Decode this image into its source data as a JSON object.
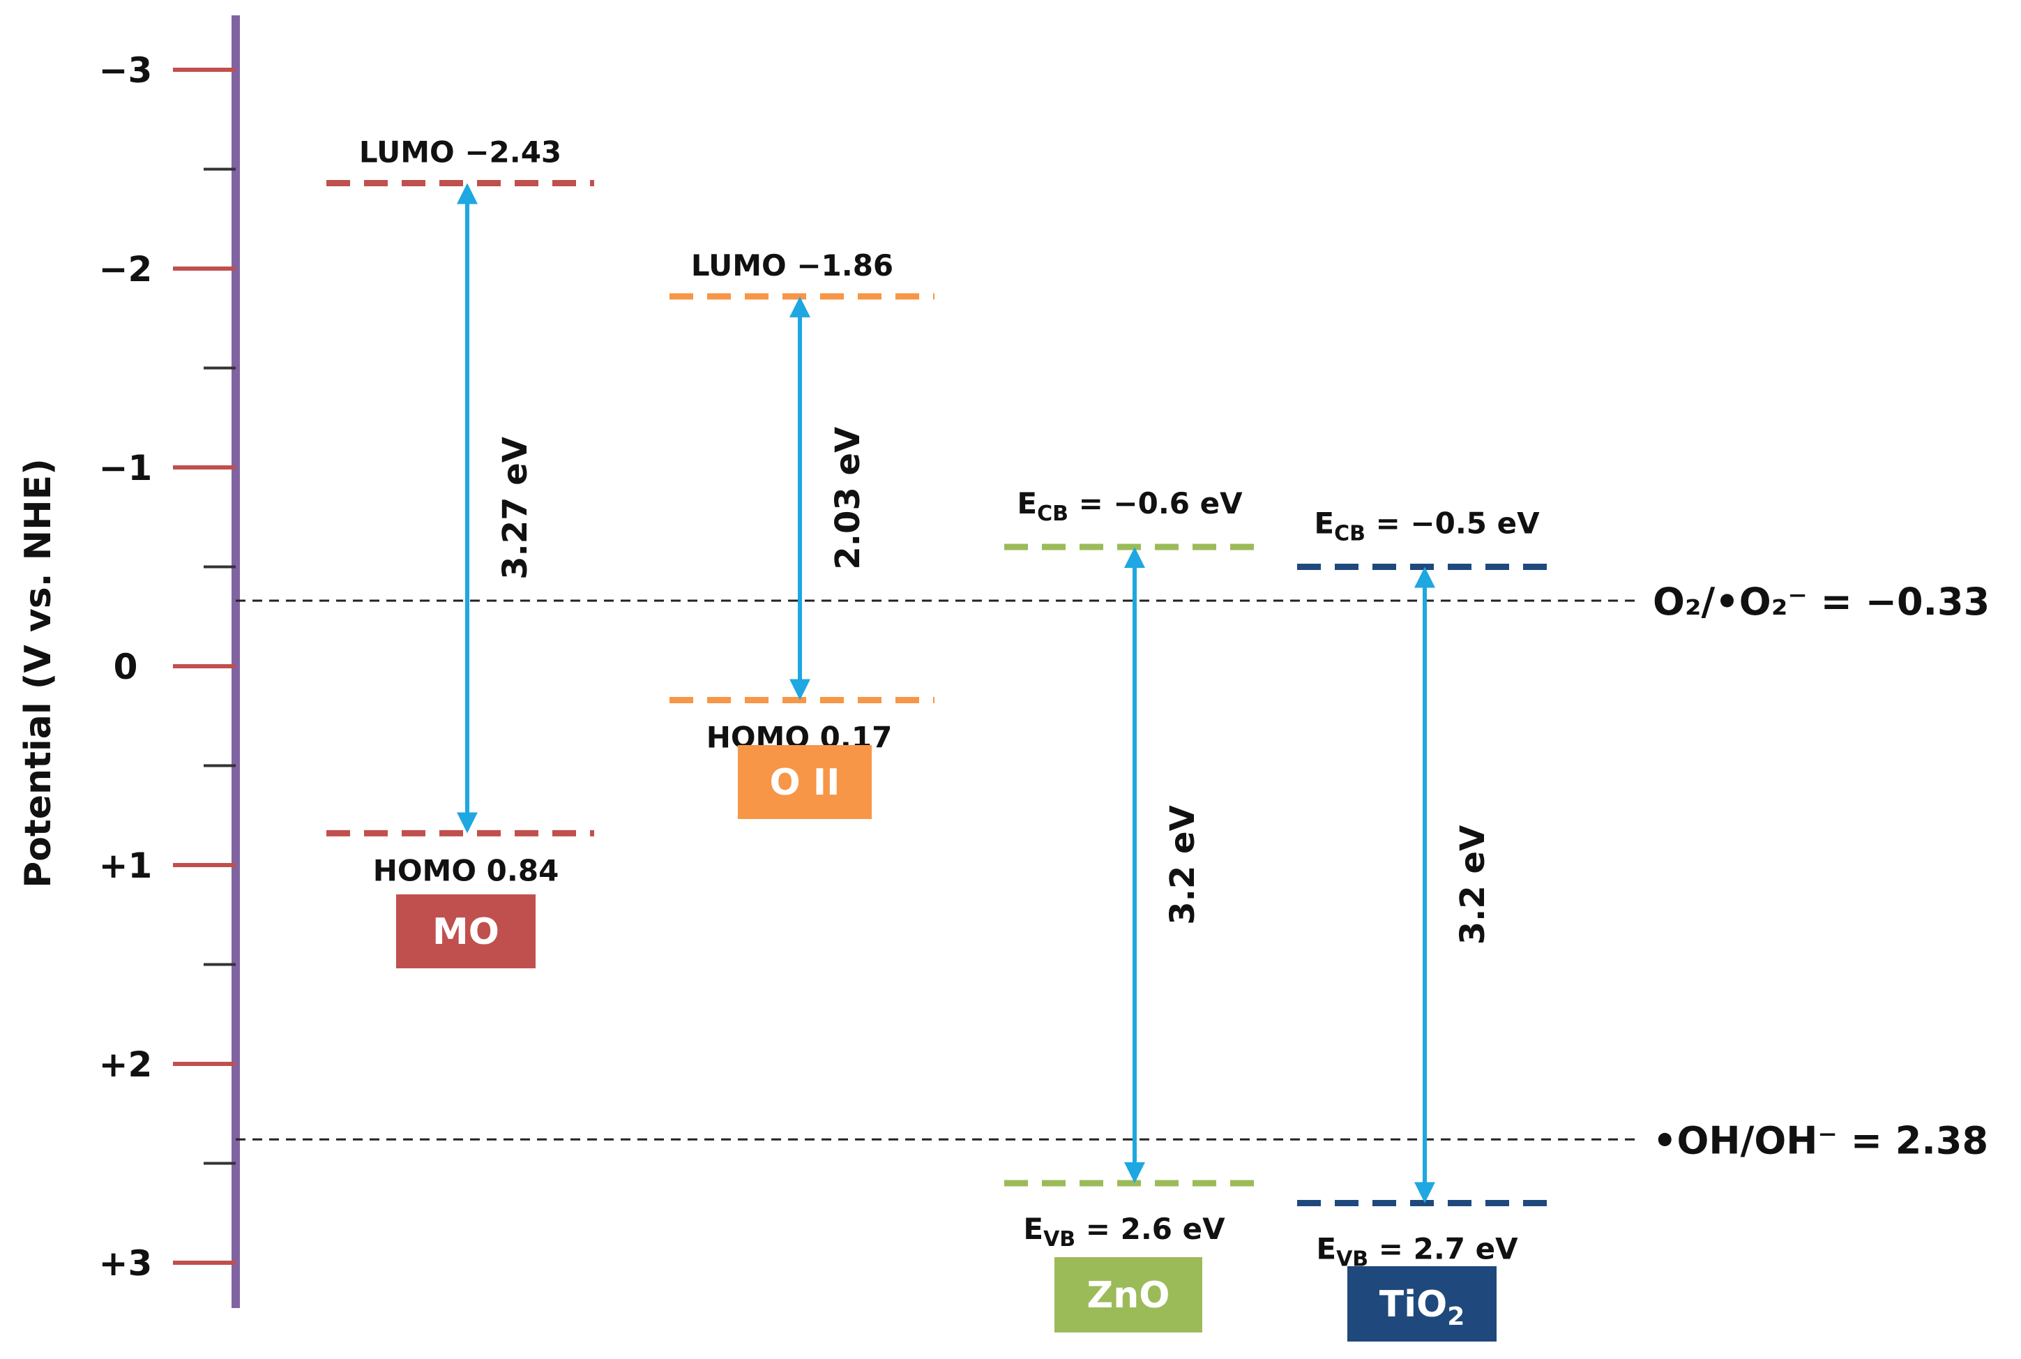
{
  "axis": {
    "title": "Potential (V vs. NHE)",
    "ticks": [
      {
        "value": -3,
        "label": "−3"
      },
      {
        "value": -2,
        "label": "−2"
      },
      {
        "value": -1,
        "label": "−1"
      },
      {
        "value": 0,
        "label": "0"
      },
      {
        "value": 1,
        "label": "+1"
      },
      {
        "value": 2,
        "label": "+2"
      },
      {
        "value": 3,
        "label": "+3"
      }
    ],
    "minor_ticks": [
      -2.5,
      -1.5,
      -0.5,
      0.5,
      1.5,
      2.5
    ],
    "range": [
      -3,
      3
    ]
  },
  "reference_lines": [
    {
      "value": -0.33,
      "label": "O₂/•O₂⁻ = −0.33"
    },
    {
      "value": 2.38,
      "label": "•OH/OH⁻ = 2.38"
    }
  ],
  "materials": [
    {
      "name": "MO",
      "color": "#c0504d",
      "upper": {
        "value": -2.43,
        "label": "LUMO −2.43"
      },
      "lower": {
        "value": 0.84,
        "label": "HOMO 0.84"
      },
      "gap_label": "3.27 eV"
    },
    {
      "name": "O II",
      "color": "#f79646",
      "upper": {
        "value": -1.86,
        "label": "LUMO −1.86"
      },
      "lower": {
        "value": 0.17,
        "label": "HOMO 0.17"
      },
      "gap_label": "2.03 eV"
    },
    {
      "name": "ZnO",
      "color": "#9bbb59",
      "upper": {
        "value": -0.6,
        "label_main": "E",
        "label_sub": "CB",
        "label_rest": " = −0.6 eV"
      },
      "lower": {
        "value": 2.6,
        "label_main": "E",
        "label_sub": "VB",
        "label_rest": " = 2.6 eV"
      },
      "gap_label": "3.2 eV"
    },
    {
      "name": "TiO₂",
      "name_main": "TiO",
      "name_sub": "2",
      "color": "#1f497d",
      "upper": {
        "value": -0.5,
        "label_main": "E",
        "label_sub": "CB",
        "label_rest": " = −0.5 eV"
      },
      "lower": {
        "value": 2.7,
        "label_main": "E",
        "label_sub": "VB",
        "label_rest": " = 2.7 eV"
      },
      "gap_label": "3.2 eV"
    }
  ],
  "colors": {
    "axis_line": "#8064a2",
    "tick": "#c0504d",
    "arrow": "#1ea7e1",
    "reference": "#222222"
  }
}
